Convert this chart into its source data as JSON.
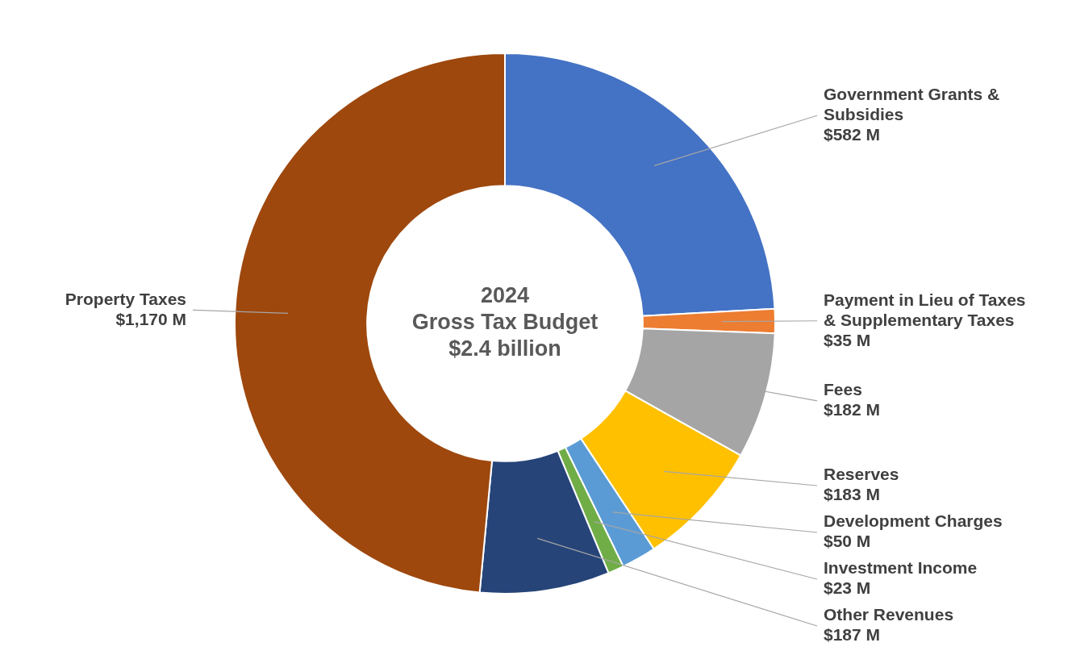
{
  "chart_data": {
    "type": "donut",
    "title": "2024\nGross Tax Budget",
    "subtitle": "$2.4 billion",
    "categories": [
      "Government Grants & Subsidies",
      "Payment in Lieu of Taxes & Supplementary Taxes",
      "Fees",
      "Reserves",
      "Development Charges",
      "Investment Income",
      "Other Revenues",
      "Property Taxes"
    ],
    "values": [
      582,
      35,
      182,
      183,
      50,
      23,
      187,
      1170
    ],
    "value_labels": [
      "$582 M",
      "$35 M",
      "$182 M",
      "$183 M",
      "$50 M",
      "$23 M",
      "$187 M",
      "$1,170 M"
    ],
    "colors": [
      "#4472c4",
      "#ed7d31",
      "#a5a5a5",
      "#ffc000",
      "#5b9bd5",
      "#70ad47",
      "#264478",
      "#9e480e"
    ],
    "legend": false
  }
}
